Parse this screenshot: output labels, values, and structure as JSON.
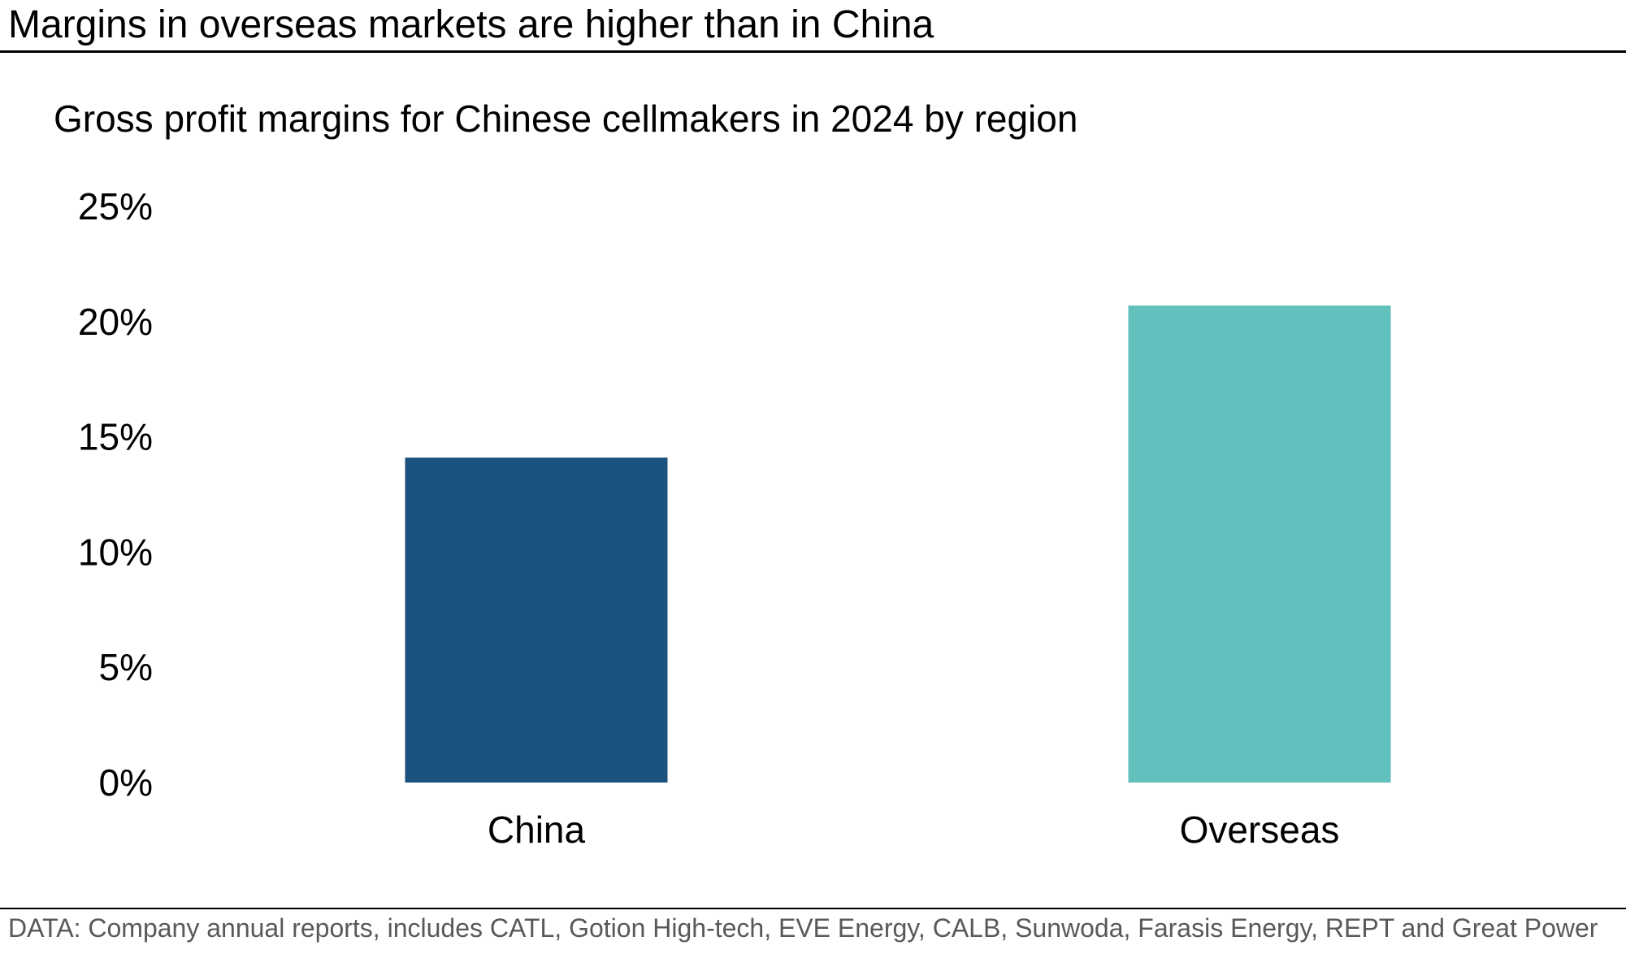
{
  "headline": "Margins in overseas markets are higher than in China",
  "footnote": "DATA: Company annual reports, includes CATL, Gotion High-tech, EVE Energy, CALB, Sunwoda, Farasis Energy, REPT and Great Power",
  "chart_data": {
    "type": "bar",
    "title": "Gross profit margins for Chinese cellmakers in 2024 by region",
    "xlabel": "",
    "ylabel": "",
    "categories": [
      "China",
      "Overseas"
    ],
    "values": [
      14.1,
      20.7
    ],
    "colors": [
      "#1c527e",
      "#62c1bc"
    ],
    "ylim": [
      0,
      25
    ],
    "yticks": [
      0,
      5,
      10,
      15,
      20,
      25
    ],
    "ytick_labels": [
      "0%",
      "5%",
      "10%",
      "15%",
      "20%",
      "25%"
    ],
    "grid": false,
    "legend": "none"
  }
}
